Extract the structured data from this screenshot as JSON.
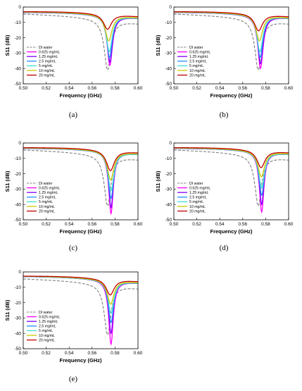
{
  "chart_data": [
    {
      "type": "line",
      "caption": "(a)",
      "xlabel": "Frequency (GHz)",
      "ylabel": "S11 (dB)",
      "xlim": [
        0.5,
        0.6
      ],
      "ylim": [
        -50,
        0
      ],
      "xticks": [
        "0.50",
        "0.52",
        "0.54",
        "0.56",
        "0.58",
        "0.60"
      ],
      "yticks": [
        "0",
        "-10",
        "-20",
        "-30",
        "-40"
      ],
      "legend_position": "lower-left",
      "series": [
        {
          "name": "DI water",
          "color": "#808080",
          "dash": true,
          "f0": 0.5735,
          "depth": -41,
          "left": -4.5,
          "right": -11,
          "width": 0.01
        },
        {
          "name": "0.625 mg/mL",
          "color": "#ff00ff",
          "f0": 0.5755,
          "depth": -38,
          "left": -3.5,
          "right": -7.5,
          "width": 0.008
        },
        {
          "name": "1.25 mg/mL",
          "color": "#8000ff",
          "f0": 0.5755,
          "depth": -36,
          "left": -3.5,
          "right": -7.5,
          "width": 0.008
        },
        {
          "name": "2.5 mg/mL",
          "color": "#1e90ff",
          "f0": 0.5752,
          "depth": -33,
          "left": -3.4,
          "right": -7.5,
          "width": 0.008
        },
        {
          "name": "5 mg/mL",
          "color": "#40e0d0",
          "f0": 0.575,
          "depth": -29,
          "left": -3.3,
          "right": -7.4,
          "width": 0.009
        },
        {
          "name": "10 mg/mL",
          "color": "#c8c800",
          "f0": 0.5745,
          "depth": -22,
          "left": -3.2,
          "right": -7.2,
          "width": 0.01
        },
        {
          "name": "20 mg/mL",
          "color": "#c00000",
          "f0": 0.5735,
          "depth": -14.5,
          "left": -3.0,
          "right": -6.5,
          "width": 0.012
        }
      ]
    },
    {
      "type": "line",
      "caption": "(b)",
      "xlabel": "Frequency (GHz)",
      "ylabel": "S11 (dB)",
      "xlim": [
        0.5,
        0.6
      ],
      "ylim": [
        -50,
        0
      ],
      "xticks": [
        "0.50",
        "0.52",
        "0.54",
        "0.56",
        "0.58",
        "0.60"
      ],
      "yticks": [
        "0",
        "-10",
        "-20",
        "-30",
        "-40"
      ],
      "legend_position": "lower-left",
      "series": [
        {
          "name": "DI water",
          "color": "#808080",
          "dash": true,
          "f0": 0.5735,
          "depth": -41,
          "left": -4.5,
          "right": -11,
          "width": 0.01
        },
        {
          "name": "0.625 mg/mL",
          "color": "#ff00ff",
          "f0": 0.5755,
          "depth": -40,
          "left": -3.5,
          "right": -7.5,
          "width": 0.008
        },
        {
          "name": "1.25 mg/mL",
          "color": "#8000ff",
          "f0": 0.5755,
          "depth": -37,
          "left": -3.5,
          "right": -7.5,
          "width": 0.008
        },
        {
          "name": "2.5 mg/mL",
          "color": "#1e90ff",
          "f0": 0.5752,
          "depth": -33,
          "left": -3.4,
          "right": -7.5,
          "width": 0.008
        },
        {
          "name": "5 mg/mL",
          "color": "#40e0d0",
          "f0": 0.575,
          "depth": -29,
          "left": -3.3,
          "right": -7.4,
          "width": 0.009
        },
        {
          "name": "10 mg/mL",
          "color": "#c8c800",
          "f0": 0.5745,
          "depth": -22,
          "left": -3.2,
          "right": -7.2,
          "width": 0.01
        },
        {
          "name": "20 mg/mL",
          "color": "#c00000",
          "f0": 0.5738,
          "depth": -15.5,
          "left": -3.0,
          "right": -6.5,
          "width": 0.012
        }
      ]
    },
    {
      "type": "line",
      "caption": "(c)",
      "xlabel": "Frequency (GHz)",
      "ylabel": "S11 (dB)",
      "xlim": [
        0.5,
        0.6
      ],
      "ylim": [
        -50,
        0
      ],
      "xticks": [
        "0.50",
        "0.52",
        "0.54",
        "0.56",
        "0.58",
        "0.60"
      ],
      "yticks": [
        "0",
        "-10",
        "-20",
        "-30",
        "-40"
      ],
      "legend_position": "lower-left",
      "series": [
        {
          "name": "DI water",
          "color": "#808080",
          "dash": true,
          "f0": 0.5735,
          "depth": -41,
          "left": -4.5,
          "right": -11,
          "width": 0.01
        },
        {
          "name": "0.625 mg/mL",
          "color": "#ff00ff",
          "f0": 0.5765,
          "depth": -46,
          "left": -3.5,
          "right": -7.5,
          "width": 0.007
        },
        {
          "name": "1.25 mg/mL",
          "color": "#8000ff",
          "f0": 0.5765,
          "depth": -42,
          "left": -3.5,
          "right": -7.5,
          "width": 0.007
        },
        {
          "name": "2.5 mg/mL",
          "color": "#1e90ff",
          "f0": 0.5765,
          "depth": -36,
          "left": -3.4,
          "right": -7.5,
          "width": 0.008
        },
        {
          "name": "5 mg/mL",
          "color": "#40e0d0",
          "f0": 0.5765,
          "depth": -31,
          "left": -3.3,
          "right": -7.4,
          "width": 0.009
        },
        {
          "name": "10 mg/mL",
          "color": "#c8c800",
          "f0": 0.5762,
          "depth": -24,
          "left": -3.2,
          "right": -7.2,
          "width": 0.01
        },
        {
          "name": "20 mg/mL",
          "color": "#c00000",
          "f0": 0.576,
          "depth": -18,
          "left": -3.0,
          "right": -6.5,
          "width": 0.012
        }
      ]
    },
    {
      "type": "line",
      "caption": "(d)",
      "xlabel": "Frequency (GHz)",
      "ylabel": "S11 (dB)",
      "xlim": [
        0.5,
        0.6
      ],
      "ylim": [
        -50,
        0
      ],
      "xticks": [
        "0.50",
        "0.52",
        "0.54",
        "0.56",
        "0.58",
        "0.60"
      ],
      "yticks": [
        "0",
        "-10",
        "-20",
        "-30",
        "-40"
      ],
      "legend_position": "lower-left",
      "series": [
        {
          "name": "DI water",
          "color": "#808080",
          "dash": true,
          "f0": 0.5735,
          "depth": -41,
          "left": -4.5,
          "right": -11,
          "width": 0.01
        },
        {
          "name": "0.625 mg/mL",
          "color": "#ff00ff",
          "f0": 0.5765,
          "depth": -45,
          "left": -3.5,
          "right": -7.5,
          "width": 0.007
        },
        {
          "name": "1.25 mg/mL",
          "color": "#8000ff",
          "f0": 0.5765,
          "depth": -40,
          "left": -3.5,
          "right": -7.5,
          "width": 0.007
        },
        {
          "name": "2.5 mg/mL",
          "color": "#1e90ff",
          "f0": 0.5765,
          "depth": -34,
          "left": -3.4,
          "right": -7.5,
          "width": 0.008
        },
        {
          "name": "5 mg/mL",
          "color": "#40e0d0",
          "f0": 0.5765,
          "depth": -29,
          "left": -3.3,
          "right": -7.4,
          "width": 0.009
        },
        {
          "name": "10 mg/mL",
          "color": "#c8c800",
          "f0": 0.5762,
          "depth": -22,
          "left": -3.2,
          "right": -7.2,
          "width": 0.01
        },
        {
          "name": "20 mg/mL",
          "color": "#c00000",
          "f0": 0.576,
          "depth": -16,
          "left": -3.0,
          "right": -6.5,
          "width": 0.012
        }
      ]
    },
    {
      "type": "line",
      "caption": "(e)",
      "xlabel": "Frequency (GHz)",
      "ylabel": "S11 (dB)",
      "xlim": [
        0.5,
        0.6
      ],
      "ylim": [
        -50,
        0
      ],
      "xticks": [
        "0.50",
        "0.52",
        "0.54",
        "0.56",
        "0.58",
        "0.60"
      ],
      "yticks": [
        "0",
        "-10",
        "-20",
        "-30",
        "-40"
      ],
      "legend_position": "lower-left",
      "series": [
        {
          "name": "DI water",
          "color": "#808080",
          "dash": true,
          "f0": 0.5735,
          "depth": -41,
          "left": -4.5,
          "right": -11,
          "width": 0.01
        },
        {
          "name": "0.625 mg/mL",
          "color": "#ff00ff",
          "f0": 0.5765,
          "depth": -47,
          "left": -3.0,
          "right": -7.5,
          "width": 0.007
        },
        {
          "name": "1.25 mg/mL",
          "color": "#8000ff",
          "f0": 0.5765,
          "depth": -40,
          "left": -3.0,
          "right": -7.5,
          "width": 0.007
        },
        {
          "name": "2.5 mg/mL",
          "color": "#1e90ff",
          "f0": 0.5765,
          "depth": -33,
          "left": -3.0,
          "right": -7.5,
          "width": 0.008
        },
        {
          "name": "5 mg/mL",
          "color": "#40e0d0",
          "f0": 0.5765,
          "depth": -27,
          "left": -2.9,
          "right": -7.4,
          "width": 0.009
        },
        {
          "name": "10 mg/mL",
          "color": "#c8c800",
          "f0": 0.5762,
          "depth": -21,
          "left": -2.8,
          "right": -7.2,
          "width": 0.01
        },
        {
          "name": "20 mg/mL",
          "color": "#c00000",
          "f0": 0.5758,
          "depth": -15,
          "left": -2.7,
          "right": -6.5,
          "width": 0.012
        }
      ]
    }
  ]
}
